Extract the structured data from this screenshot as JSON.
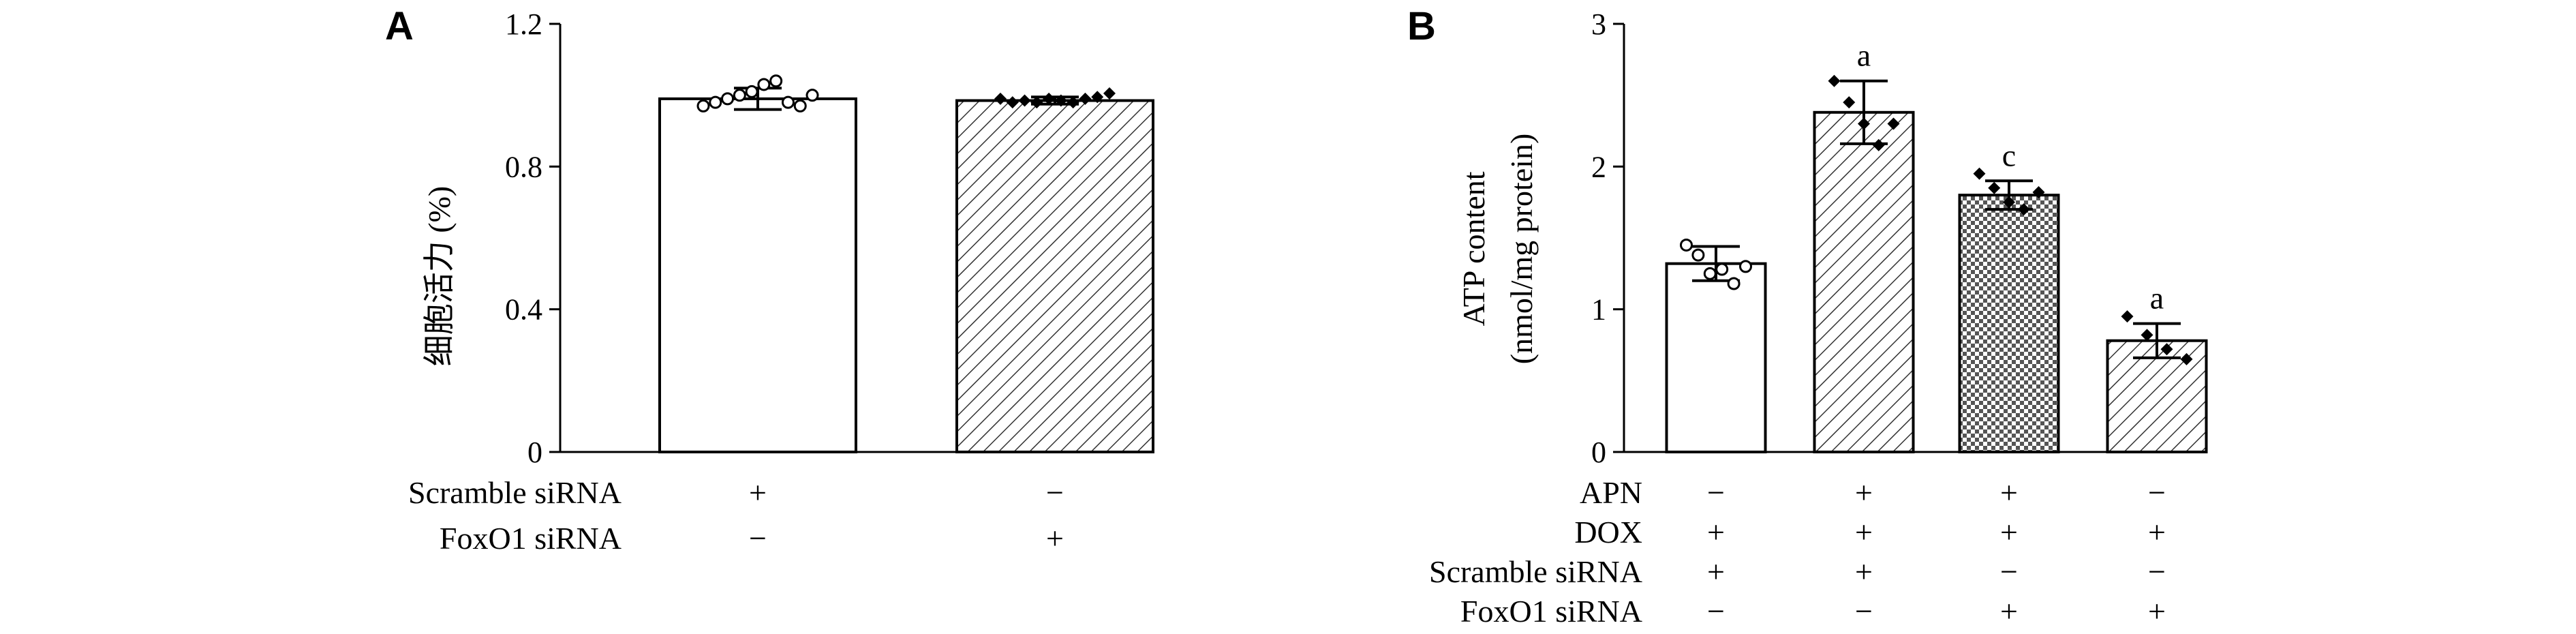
{
  "chart_data": [
    {
      "panel_label": "A",
      "type": "bar",
      "ylabel": "细胞活力 (%)",
      "ylim": [
        0,
        1.2
      ],
      "yticks": [
        "0",
        "0.4",
        "0.8",
        "1.2"
      ],
      "yticks_values": [
        0,
        0.4,
        0.8,
        1.2
      ],
      "bars": [
        {
          "value": 0.99,
          "error": 0.03,
          "pattern": "white",
          "marker": "circle",
          "points": [
            0.97,
            0.98,
            0.99,
            1.0,
            1.01,
            1.03,
            1.04,
            0.98,
            0.97,
            1.0
          ]
        },
        {
          "value": 0.985,
          "error": 0.01,
          "pattern": "hatch",
          "marker": "diamond",
          "points": [
            0.99,
            0.98,
            0.985,
            0.98,
            0.99,
            0.985,
            0.98,
            0.99,
            0.995,
            1.005
          ]
        }
      ],
      "conditions": [
        {
          "label": "Scramble siRNA",
          "signs": [
            "+",
            "−"
          ]
        },
        {
          "label": "FoxO1 siRNA",
          "signs": [
            "−",
            "+"
          ]
        }
      ]
    },
    {
      "panel_label": "B",
      "type": "bar",
      "ylabel_line1": "ATP content",
      "ylabel_line2": "(nmol/mg protein)",
      "ylim": [
        0,
        3
      ],
      "yticks": [
        "0",
        "1",
        "2",
        "3"
      ],
      "yticks_values": [
        0,
        1,
        2,
        3
      ],
      "bars": [
        {
          "value": 1.32,
          "error": 0.12,
          "pattern": "white",
          "marker": "circle",
          "annotation": "",
          "points": [
            1.45,
            1.38,
            1.25,
            1.28,
            1.18,
            1.3
          ]
        },
        {
          "value": 2.38,
          "error": 0.22,
          "pattern": "hatch",
          "marker": "diamond",
          "annotation": "a",
          "points": [
            2.6,
            2.45,
            2.3,
            2.15,
            2.3
          ]
        },
        {
          "value": 1.8,
          "error": 0.1,
          "pattern": "checker",
          "marker": "diamond",
          "annotation": "c",
          "points": [
            1.95,
            1.85,
            1.75,
            1.7,
            1.82
          ]
        },
        {
          "value": 0.78,
          "error": 0.12,
          "pattern": "hatch",
          "marker": "diamond",
          "annotation": "a",
          "points": [
            0.95,
            0.82,
            0.72,
            0.65
          ]
        }
      ],
      "conditions": [
        {
          "label": "APN",
          "signs": [
            "−",
            "+",
            "+",
            "−"
          ]
        },
        {
          "label": "DOX",
          "signs": [
            "+",
            "+",
            "+",
            "+"
          ]
        },
        {
          "label": "Scramble siRNA",
          "signs": [
            "+",
            "+",
            "−",
            "−"
          ]
        },
        {
          "label": "FoxO1 siRNA",
          "signs": [
            "−",
            "−",
            "+",
            "+"
          ]
        }
      ]
    }
  ],
  "colors": {
    "axis": "#000000",
    "bar_fill": "#ffffff",
    "pattern": "#000000"
  }
}
